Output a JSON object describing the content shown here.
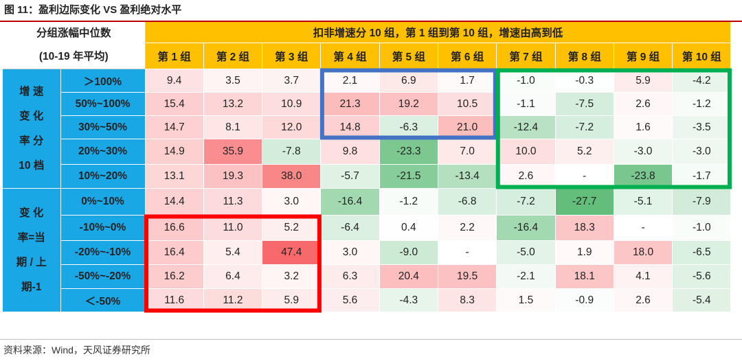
{
  "figure_title": "图 11：盈利边际变化 VS 盈利绝对水平",
  "source": "资料来源：Wind，天风证券研究所",
  "chart_data": {
    "type": "heatmap",
    "corner_label_lines": [
      "分组涨幅中位数",
      "(10-19 年平均)"
    ],
    "column_group_title": "扣非增速分 10 组，第 1 组到第 10 组，增速由高到低",
    "columns": [
      "第 1 组",
      "第 2 组",
      "第 3 组",
      "第 4 组",
      "第 5 组",
      "第 6 组",
      "第 7 组",
      "第 8 组",
      "第 9 组",
      "第 10 组"
    ],
    "row_groups": [
      {
        "label_lines": [
          "增 速",
          "变 化",
          "率 分",
          "10 档"
        ],
        "rows": [
          0,
          1,
          2,
          3,
          4
        ]
      },
      {
        "label_lines": [
          "变 化",
          "率=当",
          "期 / 上",
          "期-1"
        ],
        "rows": [
          5,
          6,
          7,
          8,
          9
        ]
      }
    ],
    "rows": [
      "＞100%",
      "50%~100%",
      "30%~50%",
      "20%~30%",
      "10%~20%",
      "0%~10%",
      "-10%~0%",
      "-20%~-10%",
      "-50%~-20%",
      "＜-50%"
    ],
    "values": [
      [
        "9.4",
        "3.5",
        "3.7",
        "2.1",
        "6.9",
        "1.7",
        "-1.0",
        "-0.3",
        "5.9",
        "-4.2"
      ],
      [
        "15.4",
        "13.2",
        "10.9",
        "21.3",
        "19.2",
        "10.5",
        "-1.1",
        "-7.5",
        "2.6",
        "-1.2"
      ],
      [
        "14.7",
        "8.1",
        "12.0",
        "14.8",
        "-6.3",
        "21.0",
        "-12.4",
        "-7.2",
        "1.6",
        "-3.5"
      ],
      [
        "14.9",
        "35.9",
        "-7.8",
        "9.8",
        "-23.3",
        "7.0",
        "10.0",
        "5.2",
        "-3.0",
        "-3.0"
      ],
      [
        "13.1",
        "19.3",
        "38.0",
        "-5.7",
        "-21.5",
        "-13.4",
        "2.6",
        "-",
        "-23.8",
        "-1.7"
      ],
      [
        "14.4",
        "11.3",
        "3.0",
        "-16.4",
        "-1.2",
        "-6.8",
        "-7.2",
        "-27.7",
        "-5.1",
        "-7.9"
      ],
      [
        "16.6",
        "11.0",
        "5.2",
        "-6.4",
        "0.4",
        "2.2",
        "-16.4",
        "18.3",
        "-",
        "-1.0"
      ],
      [
        "16.4",
        "5.4",
        "47.4",
        "3.0",
        "-9.0",
        "-",
        "-5.0",
        "1.9",
        "18.0",
        "-6.5"
      ],
      [
        "16.2",
        "6.4",
        "3.2",
        "6.3",
        "20.4",
        "19.5",
        "-2.1",
        "18.1",
        "4.1",
        "-5.6"
      ],
      [
        "11.6",
        "11.2",
        "5.9",
        "5.6",
        "-4.3",
        "8.3",
        "1.5",
        "-0.9",
        "2.6",
        "-5.4"
      ]
    ],
    "color_scale": {
      "negative": "#63be7b",
      "zero": "#ffffff",
      "positive": "#f8696b"
    },
    "highlight_boxes": [
      {
        "color": "#4472c4",
        "rows": [
          0,
          2
        ],
        "cols": [
          3,
          5
        ]
      },
      {
        "color": "#00b050",
        "rows": [
          0,
          4
        ],
        "cols": [
          6,
          9
        ]
      },
      {
        "color": "#ff0000",
        "rows": [
          6,
          9
        ],
        "cols": [
          0,
          2
        ]
      }
    ]
  }
}
